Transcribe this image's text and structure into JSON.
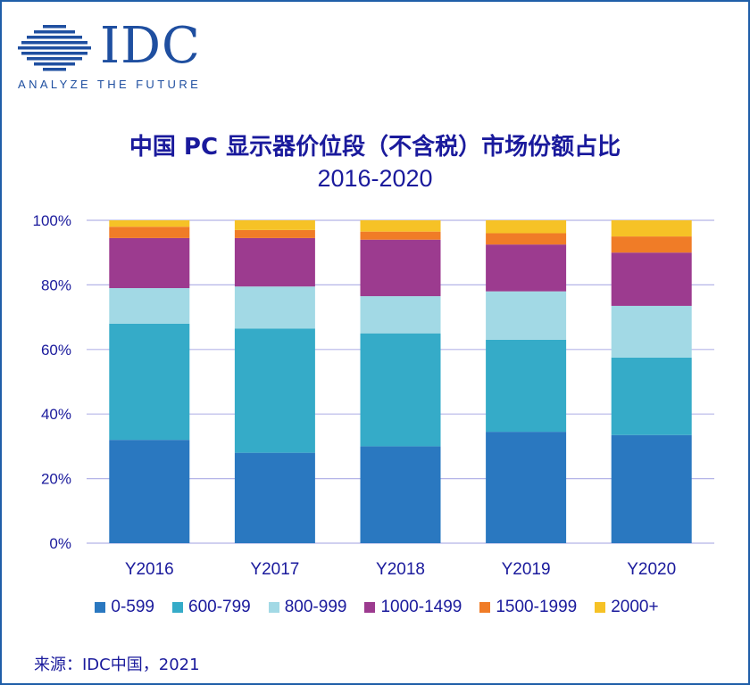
{
  "logo": {
    "wordmark": "IDC",
    "tagline": "ANALYZE THE FUTURE",
    "color": "#1f4fa0"
  },
  "chart_data": {
    "type": "bar",
    "stacked": true,
    "percent": true,
    "title": "中国 PC 显示器价位段（不含税）市场份额占比",
    "subtitle": "2016-2020",
    "categories": [
      "Y2016",
      "Y2017",
      "Y2018",
      "Y2019",
      "Y2020"
    ],
    "ylim": [
      0,
      100
    ],
    "yticks": [
      0,
      20,
      40,
      60,
      80,
      100
    ],
    "ytick_labels": [
      "0%",
      "20%",
      "40%",
      "60%",
      "80%",
      "100%"
    ],
    "grid": true,
    "legend_position": "bottom",
    "series": [
      {
        "name": "0-599",
        "color": "#2a78c0",
        "values": [
          32,
          28,
          30,
          34.5,
          33.5
        ]
      },
      {
        "name": "600-799",
        "color": "#35abc8",
        "values": [
          36,
          38.5,
          35,
          28.5,
          24
        ]
      },
      {
        "name": "800-999",
        "color": "#a2d9e5",
        "values": [
          11,
          13,
          11.5,
          15,
          16
        ]
      },
      {
        "name": "1000-1499",
        "color": "#9c3b8f",
        "values": [
          15.5,
          15,
          17.5,
          14.5,
          16.5
        ]
      },
      {
        "name": "1500-1999",
        "color": "#f07c27",
        "values": [
          3.5,
          2.5,
          2.5,
          3.5,
          5
        ]
      },
      {
        "name": "2000+",
        "color": "#f6c226",
        "values": [
          2,
          3,
          3.5,
          4,
          5
        ]
      }
    ]
  },
  "source_text": "来源：IDC中国，2021"
}
